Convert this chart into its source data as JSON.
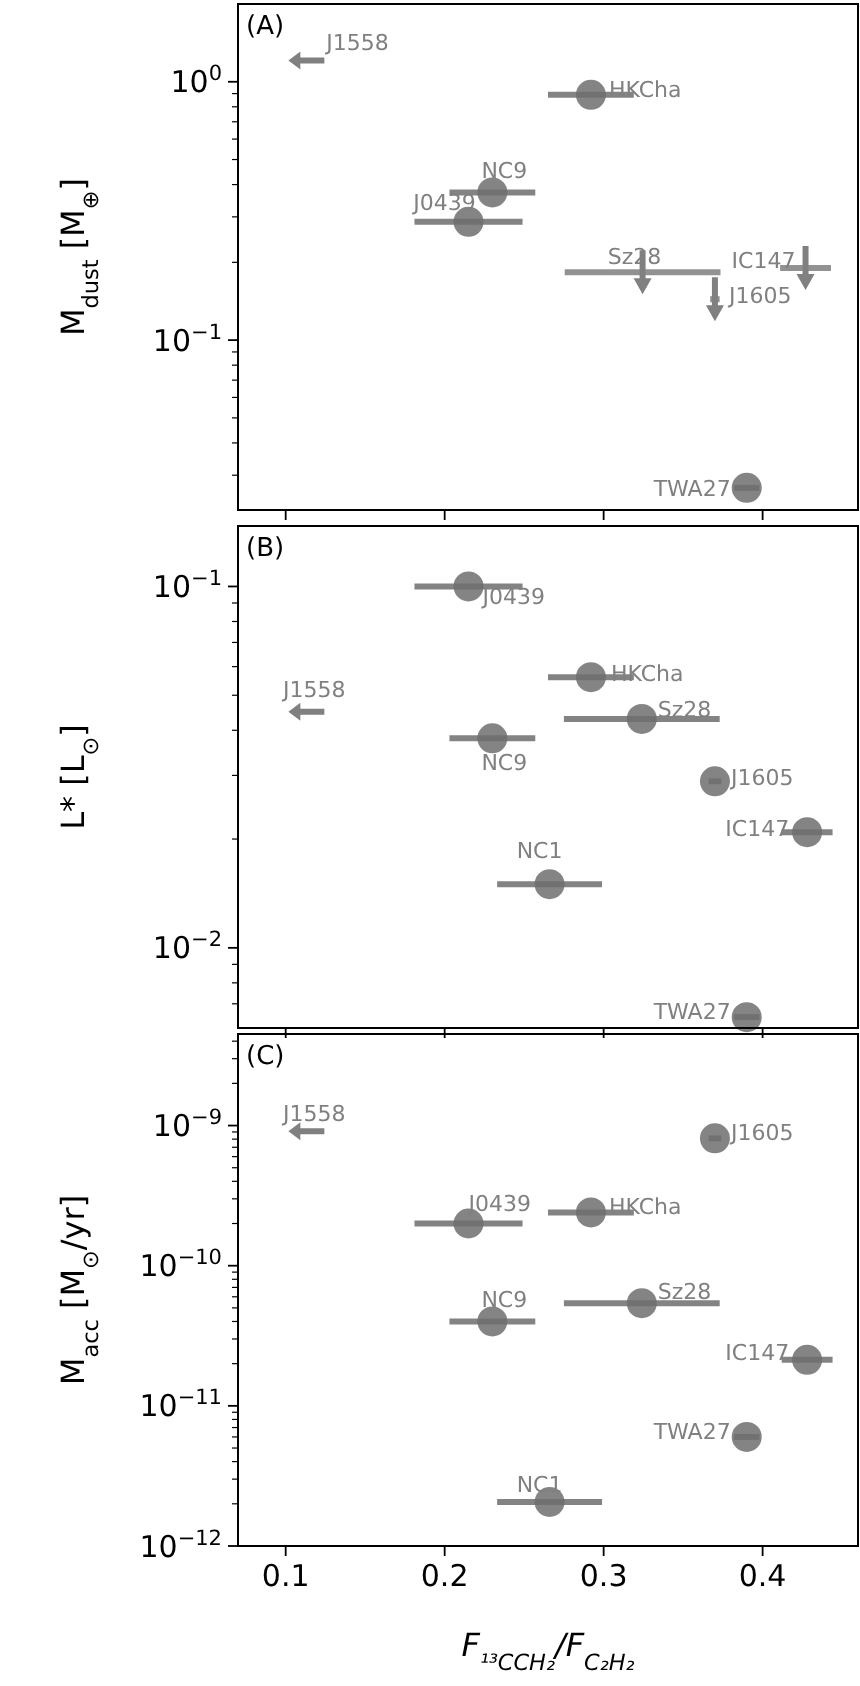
{
  "chart_data": [
    {
      "type": "scatter",
      "title": "(A)",
      "ylabel": "M$_{dust}$ [M$_{⊕}$]",
      "log": "y",
      "xlim": [
        0.07,
        0.46
      ],
      "xticks": [
        0.1,
        0.2,
        0.3,
        0.4
      ],
      "tick_labels": "y",
      "ylim": [
        0.022,
        2
      ],
      "yticks": [
        {
          "value": 0.03,
          "label": null
        },
        {
          "value": 0.04,
          "label": null
        },
        {
          "value": 0.05,
          "label": null
        },
        {
          "value": 0.06,
          "label": null
        },
        {
          "value": 0.07,
          "label": null
        },
        {
          "value": 0.08,
          "label": null
        },
        {
          "value": 0.09,
          "label": null
        },
        {
          "value": 0.1,
          "label": "10$^{−1}$"
        },
        {
          "value": 0.2,
          "label": null
        },
        {
          "value": 0.3,
          "label": null
        },
        {
          "value": 0.4,
          "label": null
        },
        {
          "value": 0.5,
          "label": null
        },
        {
          "value": 0.6,
          "label": null
        },
        {
          "value": 0.7,
          "label": null
        },
        {
          "value": 0.8,
          "label": null
        },
        {
          "value": 0.9,
          "label": null
        },
        {
          "value": 1,
          "label": "10$^{0}$"
        }
      ],
      "series": [
        {
          "marker": "circle",
          "color": "#6e6e6e",
          "x": [
            0.292,
            0.23,
            0.215,
            0.39
          ],
          "values": [
            0.89,
            0.373,
            0.287,
            0.0268
          ],
          "xerrors": [
            0.027,
            0.027,
            0.034,
            0.008
          ]
        },
        {
          "marker": "triangle",
          "color": "#808080",
          "x": [
            0.3245,
            0.37,
            0.427
          ],
          "values": [
            0.183,
            0.144,
            0.19
          ],
          "xerrors": [
            0.049,
            0.003,
            0.016
          ]
        },
        {
          "marker": "triangle",
          "color": "#808080",
          "x": [
            0.113
          ],
          "values": [
            1.21
          ]
        }
      ],
      "annotations": [
        {
          "text": "J1558",
          "x": 0.113,
          "y": 1.21
        },
        {
          "text": "HKCha",
          "x": 0.292,
          "y": 0.89
        },
        {
          "text": "NC9",
          "x": 0.23,
          "y": 0.373
        },
        {
          "text": "J0439",
          "x": 0.215,
          "y": 0.287
        },
        {
          "text": "Sz28",
          "x": 0.3245,
          "y": 0.183
        },
        {
          "text": "IC147",
          "x": 0.427,
          "y": 0.19
        },
        {
          "text": "J1605",
          "x": 0.37,
          "y": 0.144
        },
        {
          "text": "TWA27",
          "x": 0.39,
          "y": 0.0268
        }
      ]
    },
    {
      "type": "scatter",
      "title": "(B)",
      "ylabel": "L* [L$_{⊙}$]",
      "log": "y",
      "xlim": [
        0.07,
        0.46
      ],
      "xticks": [
        0.1,
        0.2,
        0.3,
        0.4
      ],
      "tick_labels": "y",
      "ylim": [
        0.006,
        0.147
      ],
      "yticks": [
        {
          "value": 0.007,
          "label": null
        },
        {
          "value": 0.008,
          "label": null
        },
        {
          "value": 0.009,
          "label": null
        },
        {
          "value": 0.01,
          "label": "10$^{−2}$"
        },
        {
          "value": 0.02,
          "label": null
        },
        {
          "value": 0.03,
          "label": null
        },
        {
          "value": 0.04,
          "label": null
        },
        {
          "value": 0.05,
          "label": null
        },
        {
          "value": 0.06,
          "label": null
        },
        {
          "value": 0.07,
          "label": null
        },
        {
          "value": 0.08,
          "label": null
        },
        {
          "value": 0.09,
          "label": null
        },
        {
          "value": 0.1,
          "label": "10$^{−1}$"
        }
      ],
      "series": [
        {
          "marker": "circle",
          "color": "#6e6e6e",
          "x": [
            0.215,
            0.292,
            0.324,
            0.23,
            0.37,
            0.428,
            0.266,
            0.39
          ],
          "values": [
            0.1,
            0.0561,
            0.043,
            0.038,
            0.0289,
            0.0209,
            0.015,
            0.00643
          ],
          "xerrors": [
            0.034,
            0.027,
            0.049,
            0.027,
            0.004,
            0.016,
            0.033,
            0.008
          ]
        },
        {
          "marker": "triangle",
          "color": "#808080",
          "x": [
            0.113
          ],
          "values": [
            0.045
          ]
        }
      ],
      "annotations": [
        {
          "text": "J0439",
          "x": 0.215,
          "y": 0.1
        },
        {
          "text": "HKCha",
          "x": 0.292,
          "y": 0.0561
        },
        {
          "text": "Sz28",
          "x": 0.324,
          "y": 0.043
        },
        {
          "text": "NC9",
          "x": 0.23,
          "y": 0.038
        },
        {
          "text": "J1605",
          "x": 0.37,
          "y": 0.0289
        },
        {
          "text": "IC147",
          "x": 0.428,
          "y": 0.0209
        },
        {
          "text": "NC1",
          "x": 0.266,
          "y": 0.015
        },
        {
          "text": "J1558",
          "x": 0.113,
          "y": 0.045
        },
        {
          "text": "TWA27",
          "x": 0.39,
          "y": 0.00643
        }
      ]
    },
    {
      "type": "scatter",
      "title": "(C)",
      "ylabel": "M$_{acc}$ [M$_{⊙}$/yr]",
      "xlabel": "F$_{¹³CCH₂}$/F$_{C₂H₂}$",
      "log": "y",
      "xlim": [
        0.07,
        0.46
      ],
      "xticks": [
        0.1,
        0.2,
        0.3,
        0.4
      ],
      "ylim": [
        1e-12,
        4.5e-09
      ],
      "yticks": [
        {
          "value": 1e-12,
          "label": "10$^{−12}$"
        },
        {
          "value": 2e-12,
          "label": null
        },
        {
          "value": 3e-12,
          "label": null
        },
        {
          "value": 4e-12,
          "label": null
        },
        {
          "value": 5e-12,
          "label": null
        },
        {
          "value": 6e-12,
          "label": null
        },
        {
          "value": 7e-12,
          "label": null
        },
        {
          "value": 8e-12,
          "label": null
        },
        {
          "value": 9e-12,
          "label": null
        },
        {
          "value": 1e-11,
          "label": "10$^{−11}$"
        },
        {
          "value": 2e-11,
          "label": null
        },
        {
          "value": 3e-11,
          "label": null
        },
        {
          "value": 4e-11,
          "label": null
        },
        {
          "value": 5e-11,
          "label": null
        },
        {
          "value": 6e-11,
          "label": null
        },
        {
          "value": 7e-11,
          "label": null
        },
        {
          "value": 8e-11,
          "label": null
        },
        {
          "value": 9e-11,
          "label": null
        },
        {
          "value": 1e-10,
          "label": "10$^{−10}$"
        },
        {
          "value": 2e-10,
          "label": null
        },
        {
          "value": 3e-10,
          "label": null
        },
        {
          "value": 4e-10,
          "label": null
        },
        {
          "value": 5e-10,
          "label": null
        },
        {
          "value": 6e-10,
          "label": null
        },
        {
          "value": 7e-10,
          "label": null
        },
        {
          "value": 8e-10,
          "label": null
        },
        {
          "value": 9e-10,
          "label": null
        },
        {
          "value": 1e-09,
          "label": "10$^{−9}$"
        },
        {
          "value": 2e-09,
          "label": null
        },
        {
          "value": 3e-09,
          "label": null
        },
        {
          "value": 4e-09,
          "label": null
        }
      ],
      "series": [
        {
          "marker": "circle",
          "color": "#6e6e6e",
          "x": [
            0.37,
            0.215,
            0.292,
            0.23,
            0.324,
            0.428,
            0.39,
            0.266
          ],
          "values": [
            8.1e-10,
            2e-10,
            2.4e-10,
            4e-11,
            5.4e-11,
            2.13e-11,
            6e-12,
            2.06e-12
          ],
          "xerrors": [
            0.004,
            0.034,
            0.027,
            0.027,
            0.049,
            0.016,
            0.008,
            0.033
          ]
        },
        {
          "marker": "triangle",
          "color": "#808080",
          "x": [
            0.113
          ],
          "values": [
            9.1e-10
          ]
        }
      ],
      "annotations": [
        {
          "text": "J1558",
          "x": 0.113,
          "y": 9.1e-10
        },
        {
          "text": "J1605",
          "x": 0.37,
          "y": 8.1e-10
        },
        {
          "text": "J0439",
          "x": 0.215,
          "y": 2e-10
        },
        {
          "text": "HKCha",
          "x": 0.292,
          "y": 2.4e-10
        },
        {
          "text": "NC9",
          "x": 0.23,
          "y": 4e-11
        },
        {
          "text": "Sz28",
          "x": 0.324,
          "y": 5.4e-11
        },
        {
          "text": "IC147",
          "x": 0.428,
          "y": 2.13e-11
        },
        {
          "text": "TWA27",
          "x": 0.39,
          "y": 6e-12
        },
        {
          "text": "NC1",
          "x": 0.266,
          "y": 2.06e-12
        }
      ]
    }
  ]
}
